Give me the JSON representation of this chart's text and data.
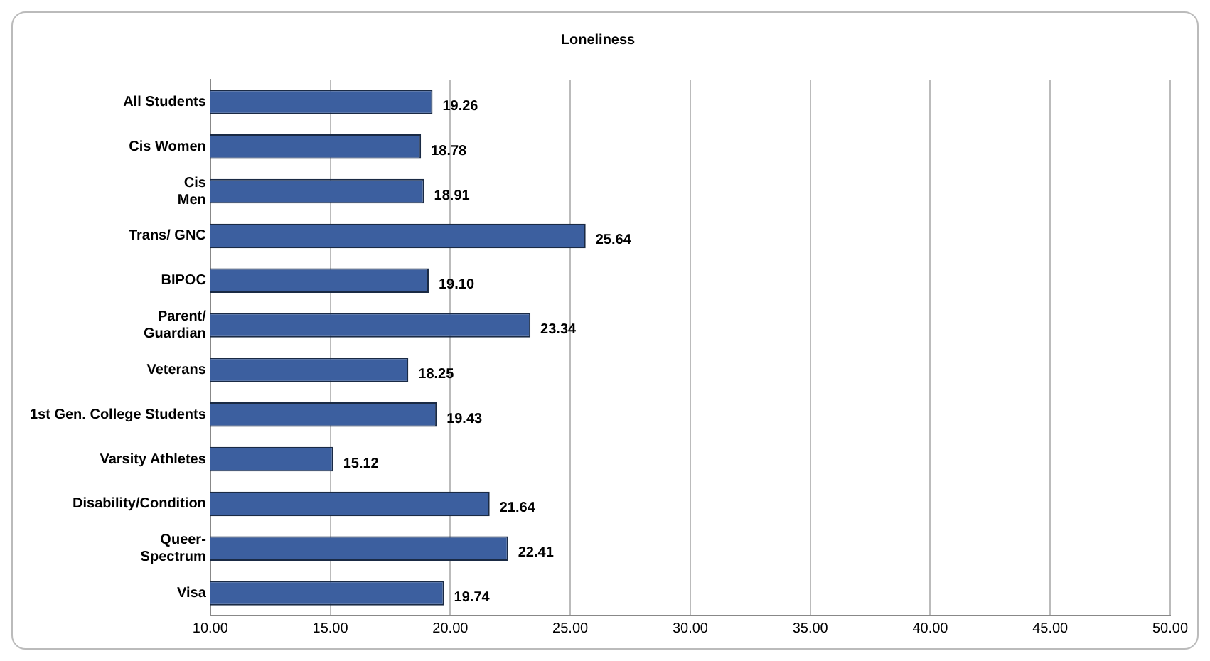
{
  "chart_data": {
    "type": "bar",
    "orientation": "horizontal",
    "title": "Loneliness",
    "categories": [
      "All Students",
      "Cis Women",
      "Cis\nMen",
      "Trans/ GNC",
      "BIPOC",
      "Parent/\nGuardian",
      "Veterans",
      "1st Gen. College Students",
      "Varsity Athletes",
      "Disability/Condition",
      "Queer-\nSpectrum",
      "Visa"
    ],
    "values": [
      19.26,
      18.78,
      18.91,
      25.64,
      19.1,
      23.34,
      18.25,
      19.43,
      15.12,
      21.64,
      22.41,
      19.74
    ],
    "value_labels": [
      "19.26",
      "18.78",
      "18.91",
      "25.64",
      "19.10",
      "23.34",
      "18.25",
      "19.43",
      "15.12",
      "21.64",
      "22.41",
      "19.74"
    ],
    "color": "#3c5f9f",
    "xlim": [
      10,
      50
    ],
    "xticks": [
      {
        "value": 10,
        "label": "10.00"
      },
      {
        "value": 15,
        "label": "15.00"
      },
      {
        "value": 20,
        "label": "20.00"
      },
      {
        "value": 25,
        "label": "25.00"
      },
      {
        "value": 30,
        "label": "30.00"
      },
      {
        "value": 35,
        "label": "35.00"
      },
      {
        "value": 40,
        "label": "40.00"
      },
      {
        "value": 45,
        "label": "45.00"
      },
      {
        "value": 50,
        "label": "50.00"
      }
    ],
    "grid": "x",
    "legend": false
  }
}
